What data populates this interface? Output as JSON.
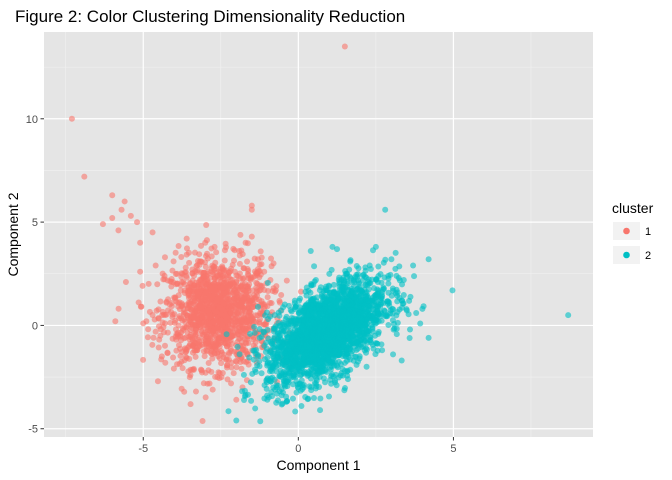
{
  "chart_data": {
    "type": "scatter",
    "title": "Figure 2: Color Clustering Dimensionality Reduction",
    "xlabel": "Component 1",
    "ylabel": "Component 2",
    "xlim": [
      -8.2,
      9.5
    ],
    "ylim": [
      -5.4,
      14.2
    ],
    "x_ticks": [
      -5,
      0,
      5
    ],
    "y_ticks": [
      -5,
      0,
      5,
      10
    ],
    "grid": true,
    "legend": {
      "title": "cluster",
      "position": "right"
    },
    "colors": {
      "panel": "#E5E5E5",
      "grid": "#FFFFFF",
      "cluster1": "#F8766D",
      "cluster2": "#00BFC4"
    },
    "series": [
      {
        "name": "1",
        "color": "#F8766D",
        "cloud": {
          "center": [
            -2.6,
            0.6
          ],
          "spread": [
            0.85,
            1.3
          ],
          "count": 1400
        },
        "points": [
          [
            1.5,
            13.5
          ],
          [
            -7.3,
            10.0
          ],
          [
            -6.9,
            7.2
          ],
          [
            -6.0,
            6.3
          ],
          [
            -5.6,
            6.0
          ],
          [
            -5.7,
            5.6
          ],
          [
            -5.4,
            5.3
          ],
          [
            -5.2,
            5.0
          ],
          [
            -6.0,
            5.2
          ],
          [
            -6.3,
            4.9
          ],
          [
            -5.8,
            4.6
          ],
          [
            -5.1,
            4.0
          ],
          [
            -4.7,
            4.5
          ],
          [
            -1.5,
            5.8
          ],
          [
            -1.5,
            5.6
          ],
          [
            -5.1,
            2.6
          ],
          [
            -4.6,
            2.9
          ],
          [
            -5.9,
            0.2
          ],
          [
            -5.0,
            0.1
          ],
          [
            -4.6,
            -0.3
          ],
          [
            -4.9,
            0.2
          ],
          [
            -3.6,
            4.2
          ],
          [
            -2.0,
            -3.6
          ],
          [
            -1.8,
            -3.0
          ],
          [
            -3.5,
            -2.5
          ],
          [
            -2.7,
            3.8
          ],
          [
            -1.3,
            3.2
          ],
          [
            -0.9,
            2.2
          ],
          [
            -1.1,
            2.6
          ],
          [
            -0.8,
            1.8
          ],
          [
            -4.4,
            -1.5
          ],
          [
            -3.3,
            -3.2
          ],
          [
            -1.5,
            4.3
          ],
          [
            -1.7,
            4.0
          ],
          [
            -4.3,
            3.3
          ],
          [
            -0.8,
            3.0
          ]
        ]
      },
      {
        "name": "2",
        "color": "#00BFC4",
        "cloud": {
          "center": [
            0.9,
            -0.3
          ],
          "spread": [
            0.95,
            1.25
          ],
          "rho": 0.55,
          "count": 2400
        },
        "points": [
          [
            8.7,
            0.5
          ],
          [
            2.8,
            5.6
          ],
          [
            4.2,
            3.2
          ],
          [
            -2.0,
            -4.6
          ],
          [
            0.7,
            -4.1
          ],
          [
            2.5,
            3.8
          ],
          [
            3.7,
            2.9
          ],
          [
            3.4,
            2.2
          ],
          [
            4.0,
            0.8
          ],
          [
            3.6,
            -0.2
          ],
          [
            4.2,
            -0.6
          ],
          [
            3.8,
            0.6
          ],
          [
            -1.0,
            -3.6
          ],
          [
            0.1,
            -3.9
          ],
          [
            2.2,
            -2.0
          ],
          [
            1.6,
            -2.6
          ],
          [
            -1.3,
            0.9
          ],
          [
            3.0,
            3.2
          ],
          [
            2.7,
            -1.2
          ],
          [
            3.2,
            1.6
          ],
          [
            -0.7,
            -3.0
          ],
          [
            0.4,
            3.6
          ],
          [
            1.1,
            3.8
          ],
          [
            2.3,
            2.9
          ]
        ]
      }
    ]
  }
}
